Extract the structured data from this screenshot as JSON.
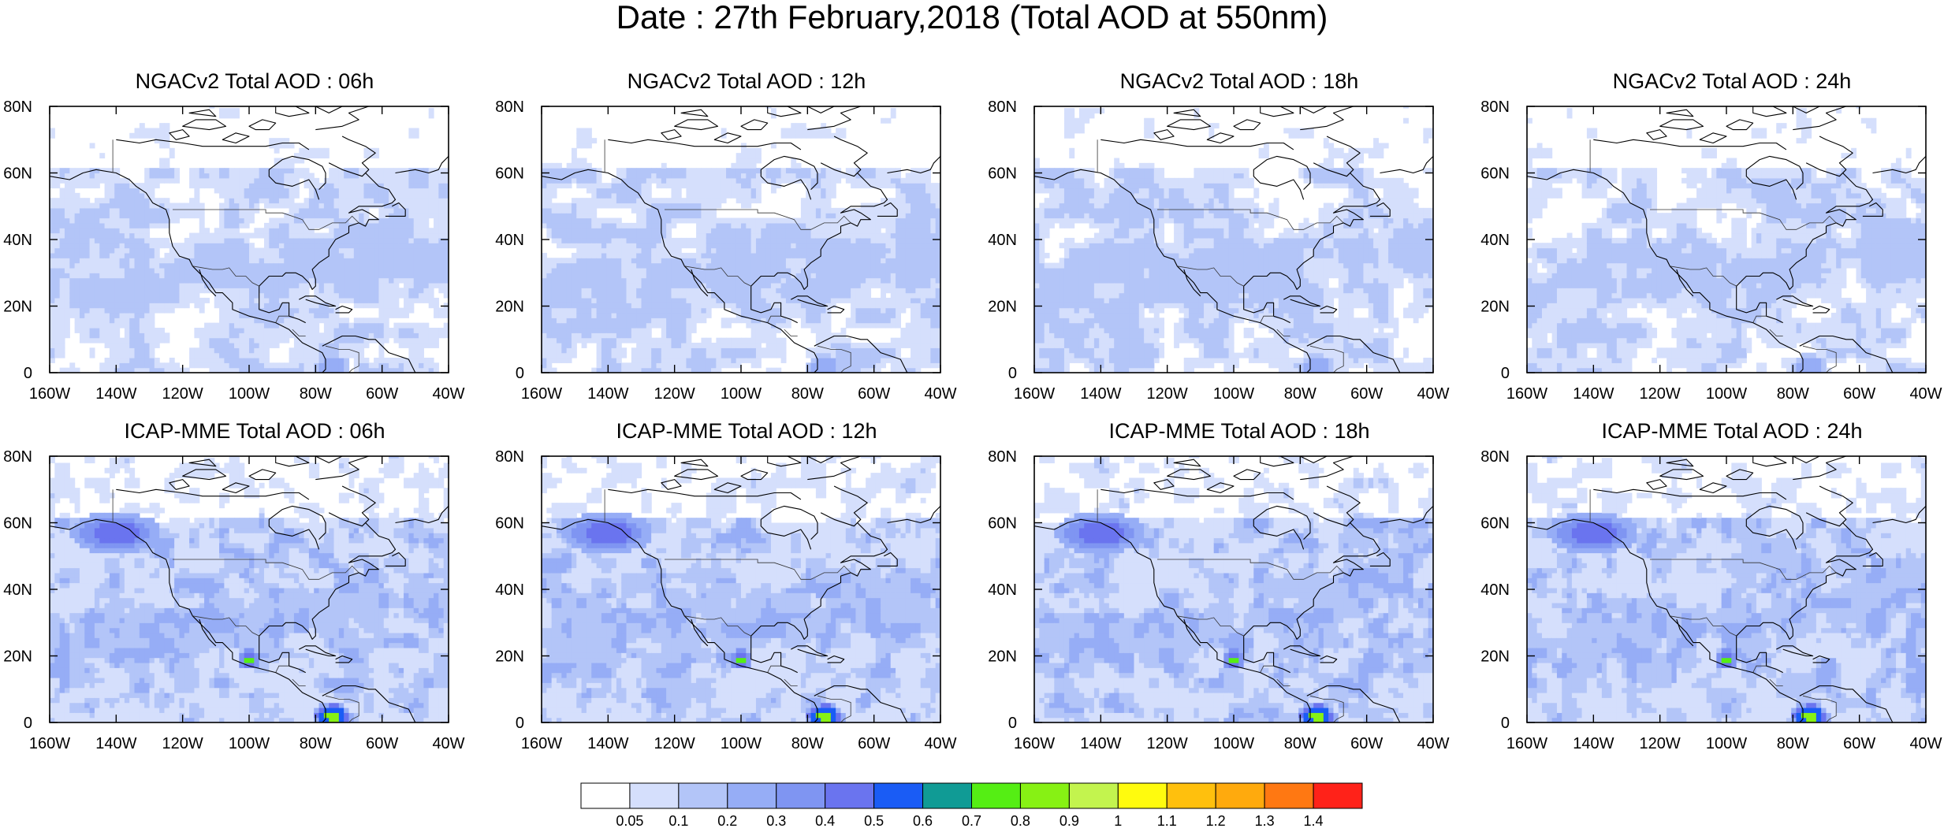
{
  "title": "Date : 27th February,2018 (Total AOD at 550nm)",
  "chart_data": [
    {
      "type": "heatmap",
      "title": "NGACv2 Total AOD : 06h",
      "xlabel": "",
      "ylabel": "",
      "xlim": [
        -160,
        -40
      ],
      "ylim": [
        0,
        80
      ],
      "x_ticks": [
        "160W",
        "140W",
        "120W",
        "100W",
        "80W",
        "60W",
        "40W"
      ],
      "y_ticks": [
        "0",
        "20N",
        "40N",
        "60N",
        "80N"
      ]
    },
    {
      "type": "heatmap",
      "title": "NGACv2 Total AOD : 12h",
      "xlabel": "",
      "ylabel": "",
      "xlim": [
        -160,
        -40
      ],
      "ylim": [
        0,
        80
      ],
      "x_ticks": [
        "160W",
        "140W",
        "120W",
        "100W",
        "80W",
        "60W",
        "40W"
      ],
      "y_ticks": [
        "0",
        "20N",
        "40N",
        "60N",
        "80N"
      ]
    },
    {
      "type": "heatmap",
      "title": "NGACv2 Total AOD : 18h",
      "xlabel": "",
      "ylabel": "",
      "xlim": [
        -160,
        -40
      ],
      "ylim": [
        0,
        80
      ],
      "x_ticks": [
        "160W",
        "140W",
        "120W",
        "100W",
        "80W",
        "60W",
        "40W"
      ],
      "y_ticks": [
        "0",
        "20N",
        "40N",
        "60N",
        "80N"
      ]
    },
    {
      "type": "heatmap",
      "title": "NGACv2 Total AOD : 24h",
      "xlabel": "",
      "ylabel": "",
      "xlim": [
        -160,
        -40
      ],
      "ylim": [
        0,
        80
      ],
      "x_ticks": [
        "160W",
        "140W",
        "120W",
        "100W",
        "80W",
        "60W",
        "40W"
      ],
      "y_ticks": [
        "0",
        "20N",
        "40N",
        "60N",
        "80N"
      ]
    },
    {
      "type": "heatmap",
      "title": "ICAP-MME Total AOD : 06h",
      "xlabel": "",
      "ylabel": "",
      "xlim": [
        -160,
        -40
      ],
      "ylim": [
        0,
        80
      ],
      "x_ticks": [
        "160W",
        "140W",
        "120W",
        "100W",
        "80W",
        "60W",
        "40W"
      ],
      "y_ticks": [
        "0",
        "20N",
        "40N",
        "60N",
        "80N"
      ]
    },
    {
      "type": "heatmap",
      "title": "ICAP-MME Total AOD : 12h",
      "xlabel": "",
      "ylabel": "",
      "xlim": [
        -160,
        -40
      ],
      "ylim": [
        0,
        80
      ],
      "x_ticks": [
        "160W",
        "140W",
        "120W",
        "100W",
        "80W",
        "60W",
        "40W"
      ],
      "y_ticks": [
        "0",
        "20N",
        "40N",
        "60N",
        "80N"
      ]
    },
    {
      "type": "heatmap",
      "title": "ICAP-MME Total AOD : 18h",
      "xlabel": "",
      "ylabel": "",
      "xlim": [
        -160,
        -40
      ],
      "ylim": [
        0,
        80
      ],
      "x_ticks": [
        "160W",
        "140W",
        "120W",
        "100W",
        "80W",
        "60W",
        "40W"
      ],
      "y_ticks": [
        "0",
        "20N",
        "40N",
        "60N",
        "80N"
      ]
    },
    {
      "type": "heatmap",
      "title": "ICAP-MME Total AOD : 24h",
      "xlabel": "",
      "ylabel": "",
      "xlim": [
        -160,
        -40
      ],
      "ylim": [
        0,
        80
      ],
      "x_ticks": [
        "160W",
        "140W",
        "120W",
        "100W",
        "80W",
        "60W",
        "40W"
      ],
      "y_ticks": [
        "0",
        "20N",
        "40N",
        "60N",
        "80N"
      ]
    }
  ],
  "colorbar": {
    "labels": [
      "0.05",
      "0.1",
      "0.2",
      "0.3",
      "0.4",
      "0.5",
      "0.6",
      "0.7",
      "0.8",
      "0.9",
      "1",
      "1.1",
      "1.2",
      "1.3",
      "1.4"
    ],
    "colors": [
      "#ffffff",
      "#d5dffc",
      "#b3c5f8",
      "#96adf6",
      "#7f95f2",
      "#6a74ef",
      "#1a5cf5",
      "#109b95",
      "#55ee14",
      "#87f114",
      "#c3f44e",
      "#fffb0e",
      "#ffc00d",
      "#ffaa0d",
      "#ff7812",
      "#ff2219"
    ]
  }
}
